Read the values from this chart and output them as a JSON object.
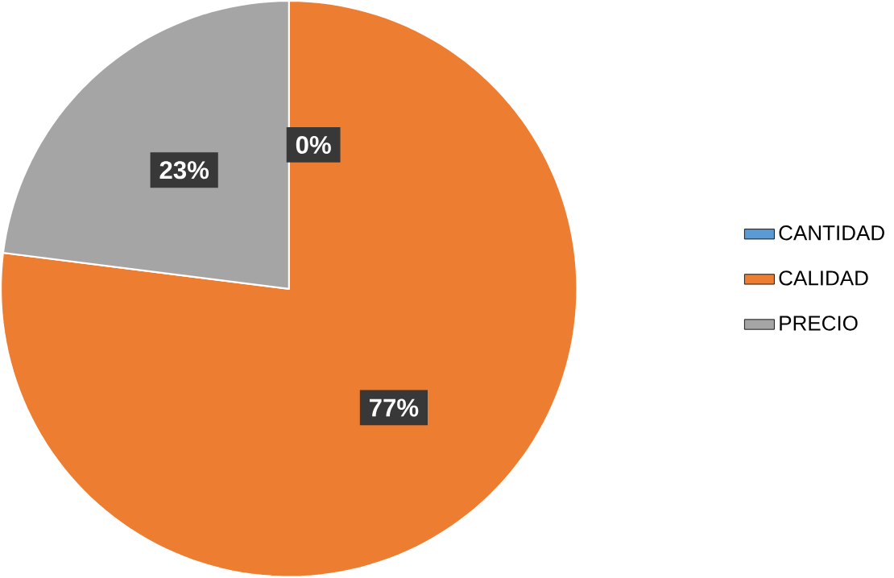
{
  "chart_data": {
    "type": "pie",
    "categories": [
      "CANTIDAD",
      "CALIDAD",
      "PRECIO"
    ],
    "values": [
      0,
      77,
      23
    ],
    "colors": [
      "#5b9bd5",
      "#ed7d31",
      "#a5a5a5"
    ],
    "value_labels": [
      "0%",
      "77%",
      "23%"
    ],
    "legend": "right"
  }
}
